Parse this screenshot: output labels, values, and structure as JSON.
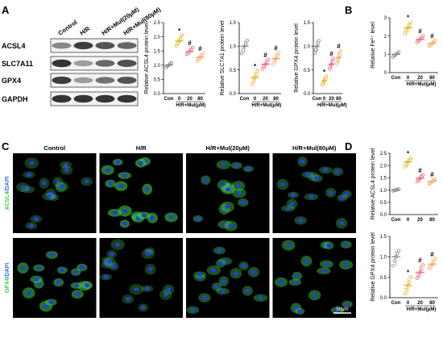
{
  "panel_labels": {
    "a": "A",
    "b": "B",
    "c": "C",
    "d": "D"
  },
  "western_blot": {
    "lanes": [
      "Control",
      "H/R",
      "H/R+Mul(20μM)",
      "H/R+Mul(80μM)"
    ],
    "proteins": [
      "ACSL4",
      "SLC7A11",
      "GPX4",
      "GAPDH"
    ],
    "band_intensity": [
      [
        0.45,
        0.8,
        0.7,
        0.62
      ],
      [
        0.85,
        0.35,
        0.6,
        0.72
      ],
      [
        0.8,
        0.35,
        0.55,
        0.7
      ],
      [
        0.85,
        0.85,
        0.85,
        0.85
      ]
    ]
  },
  "chart_data": [
    {
      "id": "acsl4-wb",
      "type": "scatter",
      "ylabel": "Relative ACSL4 protein level",
      "xlabel": "H/R+Mul(μM)",
      "categories": [
        "Con",
        "0",
        "20",
        "80"
      ],
      "ylim": [
        0,
        2.5
      ],
      "yticks": [
        0.0,
        0.5,
        1.0,
        1.5,
        2.0,
        2.5
      ],
      "yticklabels": [
        "0.0",
        "0.5",
        "1.0",
        "1.5",
        "2.0",
        "2.5"
      ],
      "means": [
        1.0,
        1.85,
        1.48,
        1.28
      ],
      "points": [
        [
          0.92,
          0.97,
          1.0,
          1.05,
          1.08
        ],
        [
          1.68,
          1.78,
          1.86,
          1.93,
          2.05
        ],
        [
          1.38,
          1.44,
          1.5,
          1.55,
          1.62
        ],
        [
          1.15,
          1.22,
          1.28,
          1.33,
          1.42
        ]
      ],
      "marks": [
        "",
        "*",
        "#",
        "#"
      ]
    },
    {
      "id": "slc7a11-wb",
      "type": "scatter",
      "ylabel": "Relative SLC7A1 protein level",
      "xlabel": "H/R+Mul(μM)",
      "categories": [
        "Con",
        "0",
        "20",
        "80"
      ],
      "ylim": [
        0,
        1.5
      ],
      "yticks": [
        0.0,
        0.5,
        1.0,
        1.5
      ],
      "yticklabels": [
        "0.0",
        "0.5",
        "1.0",
        "1.5"
      ],
      "means": [
        1.0,
        0.34,
        0.62,
        0.74
      ],
      "points": [
        [
          0.85,
          0.93,
          1.0,
          1.05,
          1.12
        ],
        [
          0.2,
          0.28,
          0.34,
          0.4,
          0.48
        ],
        [
          0.52,
          0.58,
          0.62,
          0.66,
          0.72
        ],
        [
          0.62,
          0.7,
          0.74,
          0.8,
          0.86
        ]
      ],
      "marks": [
        "",
        "*",
        "#",
        "#"
      ]
    },
    {
      "id": "gpx4-wb",
      "type": "scatter",
      "ylabel": "Relative GPX4 protein level",
      "xlabel": "H/R+Mul(μM)",
      "categories": [
        "Con",
        "0",
        "20",
        "80"
      ],
      "ylim": [
        0,
        1.5
      ],
      "yticks": [
        0.0,
        0.5,
        1.0,
        1.5
      ],
      "yticklabels": [
        "0.0",
        "0.5",
        "1.0",
        "1.5"
      ],
      "means": [
        1.0,
        0.27,
        0.62,
        0.76
      ],
      "points": [
        [
          0.86,
          0.93,
          1.0,
          1.06,
          1.12
        ],
        [
          0.18,
          0.23,
          0.27,
          0.31,
          0.36
        ],
        [
          0.52,
          0.58,
          0.62,
          0.67,
          0.74
        ],
        [
          0.63,
          0.7,
          0.76,
          0.82,
          0.9
        ]
      ],
      "marks": [
        "",
        "*",
        "#",
        "#"
      ]
    },
    {
      "id": "fe2",
      "type": "scatter",
      "ylabel": "Relative Fe²⁺ level",
      "xlabel": "H/R+Mul(μM)",
      "categories": [
        "Con",
        "0",
        "20",
        "80"
      ],
      "ylim": [
        0,
        3
      ],
      "yticks": [
        0,
        1,
        2,
        3
      ],
      "yticklabels": [
        "0",
        "1",
        "2",
        "3"
      ],
      "means": [
        1.0,
        2.45,
        1.82,
        1.6
      ],
      "points": [
        [
          0.85,
          0.93,
          1.0,
          1.05,
          1.12
        ],
        [
          2.15,
          2.3,
          2.45,
          2.58,
          2.75
        ],
        [
          1.65,
          1.75,
          1.82,
          1.9,
          2.0
        ],
        [
          1.45,
          1.52,
          1.6,
          1.66,
          1.75
        ]
      ],
      "marks": [
        "",
        "*",
        "#",
        "#"
      ]
    },
    {
      "id": "acsl4-if",
      "type": "scatter",
      "ylabel": "Relative ACSL4 protein level",
      "xlabel": "",
      "categories": [
        "Con",
        "0",
        "20",
        "80"
      ],
      "ylim": [
        0,
        2.5
      ],
      "yticks": [
        0.0,
        0.5,
        1.0,
        1.5,
        2.0,
        2.5
      ],
      "yticklabels": [
        "0.0",
        "0.5",
        "1.0",
        "1.5",
        "2.0",
        "2.5"
      ],
      "means": [
        1.0,
        2.15,
        1.48,
        1.35
      ],
      "points": [
        [
          0.97,
          0.99,
          1.0,
          1.02,
          1.04
        ],
        [
          1.95,
          2.05,
          2.15,
          2.22,
          2.3
        ],
        [
          1.35,
          1.42,
          1.48,
          1.55,
          1.62
        ],
        [
          1.25,
          1.3,
          1.35,
          1.4,
          1.45
        ]
      ],
      "marks": [
        "",
        "*",
        "#",
        "#"
      ]
    },
    {
      "id": "gpx4-if",
      "type": "scatter",
      "ylabel": "Relative GPX4 protein level",
      "xlabel": "H/R+Mul(μM)",
      "categories": [
        "Con",
        "0",
        "20",
        "80"
      ],
      "ylim": [
        0,
        1.5
      ],
      "yticks": [
        0.0,
        0.5,
        1.0,
        1.5
      ],
      "yticklabels": [
        "0.0",
        "0.5",
        "1.0",
        "1.5"
      ],
      "means": [
        1.0,
        0.3,
        0.62,
        0.82
      ],
      "points": [
        [
          0.78,
          0.9,
          1.0,
          1.08,
          1.15
        ],
        [
          0.1,
          0.2,
          0.3,
          0.38,
          0.5
        ],
        [
          0.48,
          0.55,
          0.62,
          0.7,
          0.8
        ],
        [
          0.72,
          0.78,
          0.82,
          0.88,
          0.95
        ]
      ],
      "marks": [
        "",
        "*",
        "#",
        "#"
      ]
    }
  ],
  "colors": {
    "con": "#888888",
    "hr": "#e0b41e",
    "mul20": "#f2627a",
    "mul80": "#f5a45c",
    "green": "#3ecf3e",
    "blue": "#2a3cdc"
  },
  "microscopy": {
    "columns": [
      "Control",
      "H/R",
      "H/R+Mul(20μM)",
      "H/R+Mul(80μM)"
    ],
    "rows": [
      {
        "label_a": "ACSL4",
        "label_b": "/DAPI",
        "greens": [
          0.3,
          1.0,
          0.65,
          0.45
        ]
      },
      {
        "label_a": "GPX4",
        "label_b": "/DAPI",
        "greens": [
          0.9,
          0.3,
          0.55,
          0.75
        ]
      }
    ],
    "scalebar": "50μm"
  }
}
